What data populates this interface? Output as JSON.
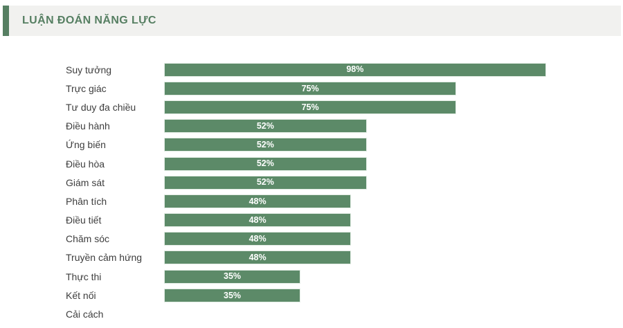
{
  "header": {
    "title": "LUẬN ĐOÁN NĂNG LỰC"
  },
  "colors": {
    "accent_green": "#567f62",
    "header_background": "#f1f1ef",
    "bar_fill": "#5c8a68",
    "bar_border": "#e2ece4",
    "value_label": "#ffffff",
    "category_label": "#3d3d3d",
    "page_background": "#ffffff"
  },
  "chart_data": {
    "type": "bar",
    "orientation": "horizontal",
    "title": "LUẬN ĐOÁN NĂNG LỰC",
    "xlabel": "",
    "ylabel": "",
    "xlim": [
      0,
      100
    ],
    "grid": false,
    "legend": false,
    "value_suffix": "%",
    "value_label_position": "center-inside",
    "categories": [
      "Suy tưởng",
      "Trực giác",
      "Tư duy đa chiều",
      "Điều hành",
      "Ứng biến",
      "Điều hòa",
      "Giám sát",
      "Phân tích",
      "Điều tiết",
      "Chăm sóc",
      "Truyền cảm hứng",
      "Thực thi",
      "Kết nối",
      "Cải cách"
    ],
    "values": [
      98,
      75,
      75,
      52,
      52,
      52,
      52,
      48,
      48,
      48,
      48,
      35,
      35,
      null
    ]
  }
}
